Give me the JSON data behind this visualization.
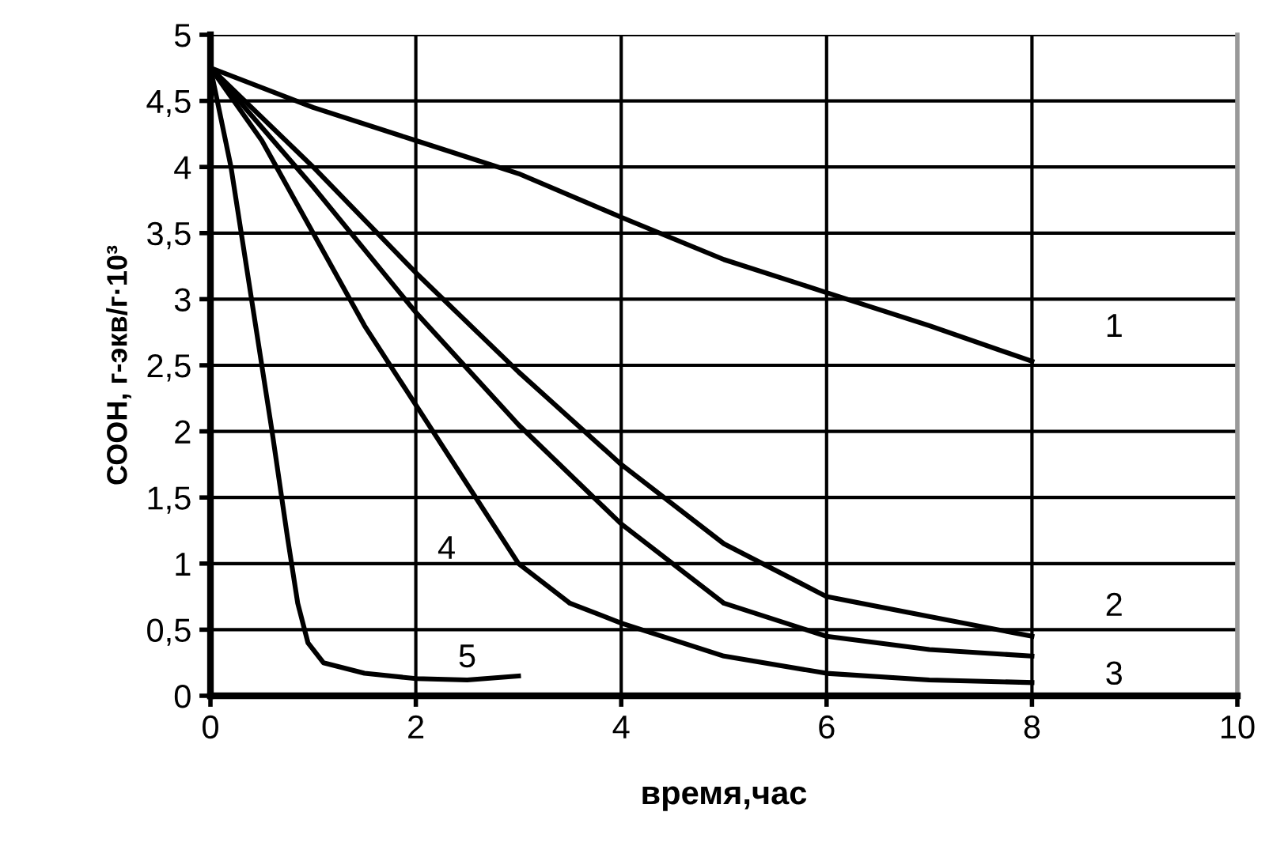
{
  "chart_data": {
    "type": "line",
    "xlabel": "время,час",
    "ylabel": "СООН, г-экв/г·10³",
    "xlim": [
      0,
      10
    ],
    "xticks": [
      0,
      2,
      4,
      6,
      8,
      10
    ],
    "ylim": [
      0,
      5
    ],
    "yticks": [
      0,
      {
        "value": 0.5,
        "label": "0,5"
      },
      1,
      {
        "value": 1.5,
        "label": "1,5"
      },
      2,
      {
        "value": 2.5,
        "label": "2,5"
      },
      3,
      {
        "value": 3.5,
        "label": "3,5"
      },
      4,
      {
        "value": 4.5,
        "label": "4,5"
      },
      5
    ],
    "grid": true,
    "marker": "none",
    "line_style": "solid",
    "series": [
      {
        "name": "1",
        "color": "#000000",
        "x": [
          0,
          1,
          2,
          3,
          4,
          5,
          6,
          7,
          8
        ],
        "values": [
          4.75,
          4.45,
          4.2,
          3.95,
          3.62,
          3.3,
          3.05,
          2.8,
          2.53
        ]
      },
      {
        "name": "2",
        "color": "#000000",
        "x": [
          0,
          1,
          2,
          3,
          4,
          5,
          6,
          7,
          8
        ],
        "values": [
          4.75,
          4.0,
          3.2,
          2.45,
          1.75,
          1.15,
          0.75,
          0.6,
          0.45
        ]
      },
      {
        "name": "3",
        "color": "#000000",
        "x": [
          0,
          1,
          2,
          3,
          4,
          5,
          6,
          7,
          8
        ],
        "values": [
          4.75,
          3.85,
          2.9,
          2.05,
          1.3,
          0.7,
          0.45,
          0.35,
          0.3
        ]
      },
      {
        "name": "4",
        "color": "#000000",
        "x": [
          0,
          0.5,
          1,
          1.5,
          2,
          2.5,
          3,
          3.5,
          4,
          5,
          6,
          7,
          8
        ],
        "values": [
          4.75,
          4.2,
          3.5,
          2.8,
          2.2,
          1.6,
          1.0,
          0.7,
          0.55,
          0.3,
          0.17,
          0.12,
          0.1
        ]
      },
      {
        "name": "5",
        "color": "#000000",
        "x": [
          0,
          0.2,
          0.4,
          0.6,
          0.75,
          0.85,
          0.95,
          1.1,
          1.5,
          2,
          2.5,
          3
        ],
        "values": [
          4.75,
          4.0,
          3.0,
          2.0,
          1.2,
          0.7,
          0.4,
          0.25,
          0.17,
          0.13,
          0.12,
          0.15
        ]
      }
    ]
  }
}
